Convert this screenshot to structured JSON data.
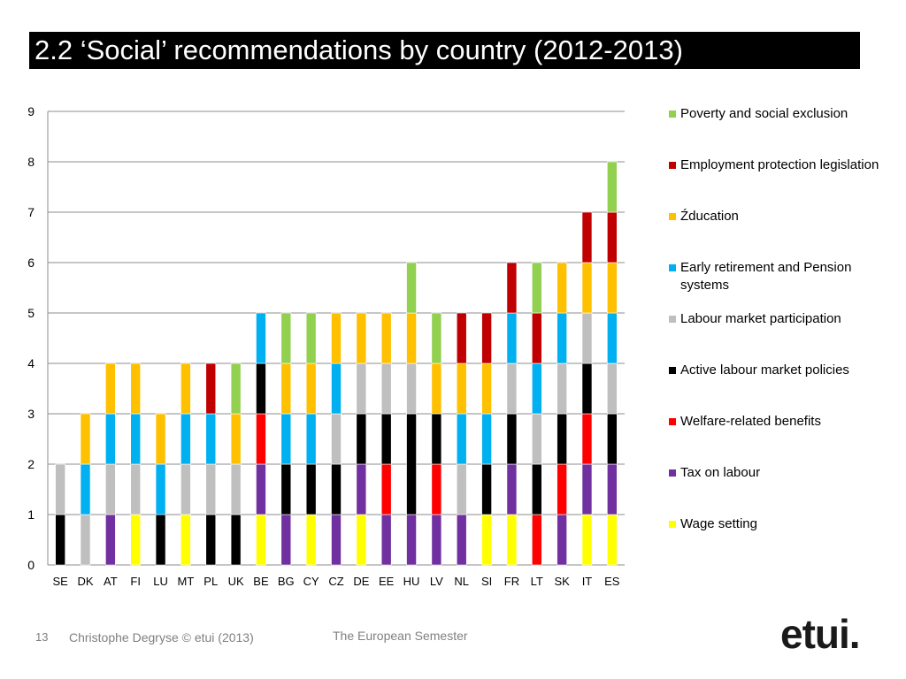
{
  "slide": {
    "title": "2.2 ‘Social’  recommendations by country (2012-2013)",
    "page_number": "13",
    "author": "Christophe Degryse © etui (2013)",
    "footer_center": "The European Semester",
    "logo": "etui."
  },
  "chart_data": {
    "type": "bar",
    "stacked": true,
    "title": "",
    "xlabel": "",
    "ylabel": "",
    "ylim": [
      0,
      9
    ],
    "yticks": [
      0,
      1,
      2,
      3,
      4,
      5,
      6,
      7,
      8,
      9
    ],
    "grid": true,
    "legend_position": "right",
    "categories": [
      "SE",
      "DK",
      "AT",
      "FI",
      "LU",
      "MT",
      "PL",
      "UK",
      "BE",
      "BG",
      "CY",
      "CZ",
      "DE",
      "EE",
      "HU",
      "LV",
      "NL",
      "SI",
      "FR",
      "LT",
      "SK",
      "IT",
      "ES"
    ],
    "series": [
      {
        "name": "Wage setting",
        "color": "#ffff00",
        "values": [
          0,
          0,
          0,
          1,
          0,
          1,
          0,
          0,
          1,
          0,
          1,
          0,
          1,
          0,
          0,
          0,
          0,
          1,
          1,
          0,
          0,
          1,
          1
        ]
      },
      {
        "name": "Tax on labour",
        "color": "#7030a0",
        "values": [
          0,
          0,
          1,
          0,
          0,
          0,
          0,
          0,
          1,
          1,
          0,
          1,
          1,
          1,
          1,
          1,
          1,
          0,
          1,
          0,
          1,
          1,
          1
        ]
      },
      {
        "name": "Welfare-related benefits",
        "color": "#ff0000",
        "values": [
          0,
          0,
          0,
          0,
          0,
          0,
          0,
          0,
          1,
          0,
          0,
          0,
          0,
          1,
          0,
          1,
          0,
          0,
          0,
          1,
          1,
          1,
          0
        ]
      },
      {
        "name": "Active labour market policies",
        "color": "#000000",
        "values": [
          1,
          0,
          0,
          0,
          1,
          0,
          1,
          1,
          1,
          1,
          1,
          1,
          1,
          1,
          2,
          1,
          0,
          1,
          1,
          1,
          1,
          1,
          1
        ]
      },
      {
        "name": "Labour market participation",
        "color": "#bfbfbf",
        "values": [
          1,
          1,
          1,
          1,
          0,
          1,
          1,
          1,
          0,
          0,
          0,
          1,
          1,
          1,
          1,
          0,
          1,
          0,
          1,
          1,
          1,
          1,
          1
        ]
      },
      {
        "name": "Early retirement and Pension systems",
        "color": "#00b0f0",
        "values": [
          0,
          1,
          1,
          1,
          1,
          1,
          1,
          0,
          1,
          1,
          1,
          1,
          0,
          0,
          0,
          0,
          1,
          1,
          1,
          1,
          1,
          0,
          1
        ]
      },
      {
        "name": "Źducation",
        "color": "#ffc000",
        "values": [
          0,
          1,
          1,
          1,
          1,
          1,
          0,
          1,
          0,
          1,
          1,
          1,
          1,
          1,
          1,
          1,
          1,
          1,
          0,
          0,
          1,
          1,
          1
        ]
      },
      {
        "name": "Employment protection legislation",
        "color": "#c00000",
        "values": [
          0,
          0,
          0,
          0,
          0,
          0,
          1,
          0,
          0,
          0,
          0,
          0,
          0,
          0,
          0,
          0,
          1,
          1,
          1,
          1,
          0,
          1,
          1
        ]
      },
      {
        "name": "Poverty and social exclusion",
        "color": "#92d050",
        "values": [
          0,
          0,
          0,
          0,
          0,
          0,
          0,
          1,
          0,
          1,
          1,
          0,
          0,
          0,
          1,
          1,
          0,
          0,
          0,
          1,
          0,
          0,
          1
        ]
      }
    ],
    "legend_order": [
      "Poverty and social exclusion",
      "Employment protection legislation",
      "Źducation",
      "Early retirement and Pension systems",
      "Labour market participation",
      "Active labour market policies",
      "Welfare-related benefits",
      "Tax on labour",
      "Wage setting"
    ]
  }
}
